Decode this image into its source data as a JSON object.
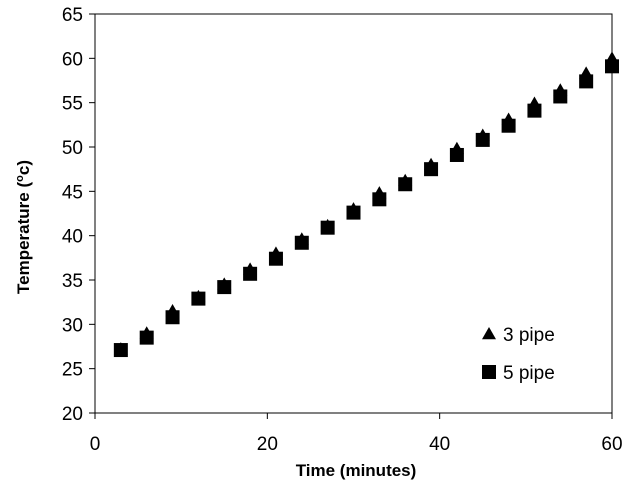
{
  "chart_data": {
    "type": "scatter",
    "xlabel": "Time (minutes)",
    "ylabel_main": "Temperature (",
    "ylabel_sup": "o",
    "ylabel_tail": "c)",
    "xlim": [
      0,
      60
    ],
    "ylim": [
      20,
      65
    ],
    "x_ticks": [
      0,
      20,
      40,
      60
    ],
    "y_ticks": [
      20,
      25,
      30,
      35,
      40,
      45,
      50,
      55,
      60,
      65
    ],
    "grid": false,
    "legend_position": "bottom-right",
    "series": [
      {
        "name": "3 pipe",
        "marker": "triangle",
        "color": "#000000",
        "x": [
          3,
          6,
          9,
          12,
          15,
          18,
          21,
          24,
          27,
          30,
          33,
          36,
          39,
          42,
          45,
          48,
          51,
          54,
          57,
          60
        ],
        "y": [
          27.2,
          29.0,
          31.5,
          33.1,
          34.5,
          36.2,
          38.0,
          39.6,
          41.1,
          43.0,
          44.8,
          46.2,
          48.0,
          49.8,
          51.3,
          53.1,
          54.9,
          56.4,
          58.3,
          60.0
        ]
      },
      {
        "name": "5 pipe",
        "marker": "square",
        "color": "#000000",
        "x": [
          3,
          6,
          9,
          12,
          15,
          18,
          21,
          24,
          27,
          30,
          33,
          36,
          39,
          42,
          45,
          48,
          51,
          54,
          57,
          60
        ],
        "y": [
          27.1,
          28.5,
          30.8,
          32.9,
          34.2,
          35.7,
          37.4,
          39.2,
          40.9,
          42.6,
          44.1,
          45.8,
          47.5,
          49.1,
          50.8,
          52.4,
          54.1,
          55.7,
          57.4,
          59.1
        ]
      }
    ]
  }
}
